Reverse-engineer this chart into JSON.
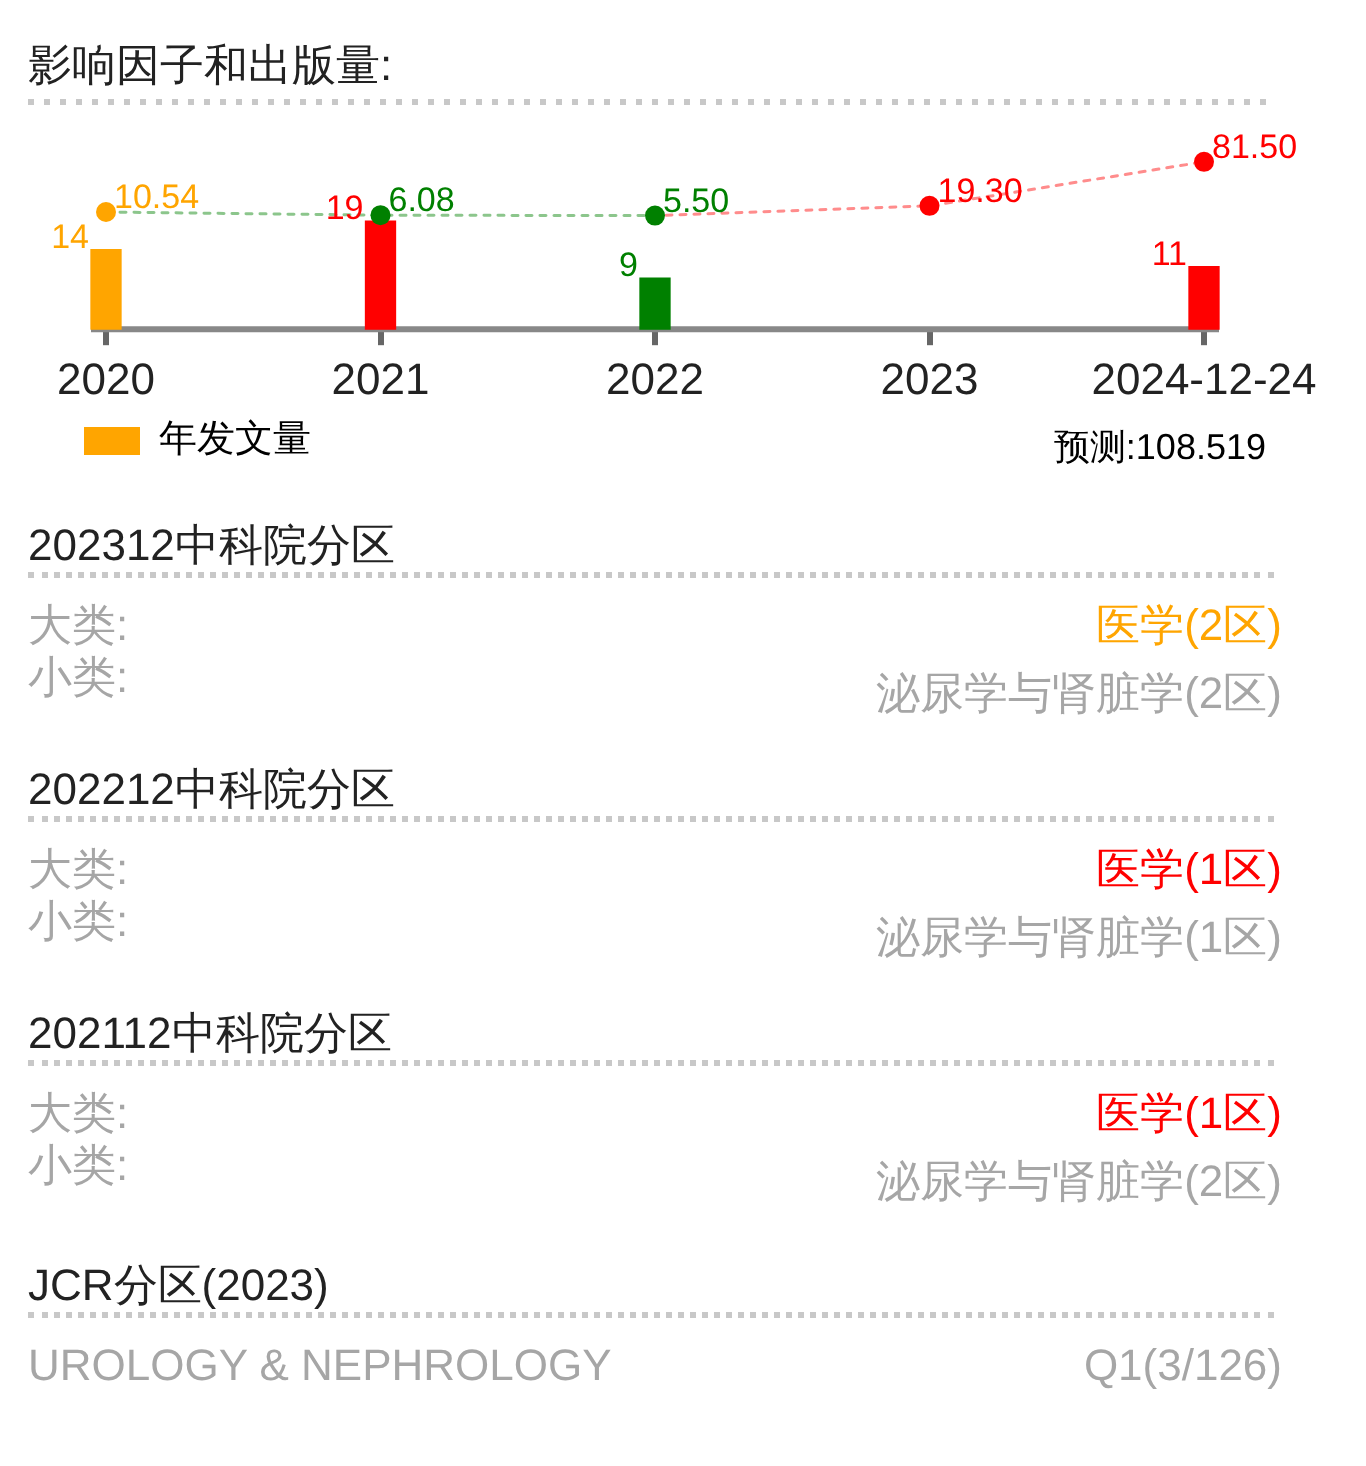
{
  "chart_data": [
    {
      "type": "bar",
      "title": "影响因子和出版量:",
      "categories": [
        "2020",
        "2021",
        "2022",
        "2023",
        "2024-12-24"
      ],
      "series": [
        {
          "name": "年发文量",
          "type": "bar",
          "colors": [
            "#ffa500",
            "#ff0000",
            "#008000",
            null,
            "#ff0000"
          ],
          "values": [
            14,
            19,
            9,
            null,
            11
          ],
          "value_labels": [
            "14",
            "19",
            "9",
            null,
            "11"
          ]
        },
        {
          "type": "line",
          "axis": "y2",
          "colors": [
            "#ffa500",
            "#008000",
            "#008000",
            "#ff0000",
            "#ff0000"
          ],
          "values": [
            10.54,
            6.08,
            5.5,
            19.3,
            81.5
          ],
          "value_labels": [
            "10.54",
            "6.08",
            "5.50",
            "19.30",
            "81.50"
          ],
          "marker": "circle",
          "line_style": "dotted"
        }
      ],
      "ylim": [
        0,
        40
      ],
      "y2lim": [
        -155,
        166
      ],
      "legend": "bottom left",
      "tick_labels": "x",
      "annotations": [
        "预测:108.519"
      ]
    },
    {
      "type": "other",
      "title": "202312中科院分区",
      "annotations": [
        "大类:",
        "医学(2区)",
        "小类:",
        "泌尿学与肾脏学(2区)"
      ],
      "colors": [
        "#a6a6a6",
        "#ffa500",
        "#a6a6a6",
        "#a6a6a6"
      ]
    },
    {
      "type": "other",
      "title": "202212中科院分区",
      "annotations": [
        "大类:",
        "医学(1区)",
        "小类:",
        "泌尿学与肾脏学(1区)"
      ],
      "colors": [
        "#a6a6a6",
        "#ff0000",
        "#a6a6a6",
        "#a6a6a6"
      ]
    },
    {
      "type": "other",
      "title": "202112中科院分区",
      "annotations": [
        "大类:",
        "医学(1区)",
        "小类:",
        "泌尿学与肾脏学(2区)"
      ],
      "colors": [
        "#a6a6a6",
        "#ff0000",
        "#a6a6a6",
        "#a6a6a6"
      ]
    },
    {
      "type": "other",
      "title": "JCR分区(2023)",
      "annotations": [
        "UROLOGY & NEPHROLOGY",
        "Q1(3/126)"
      ],
      "colors": [
        "#a6a6a6",
        "#a6a6a6"
      ]
    }
  ]
}
